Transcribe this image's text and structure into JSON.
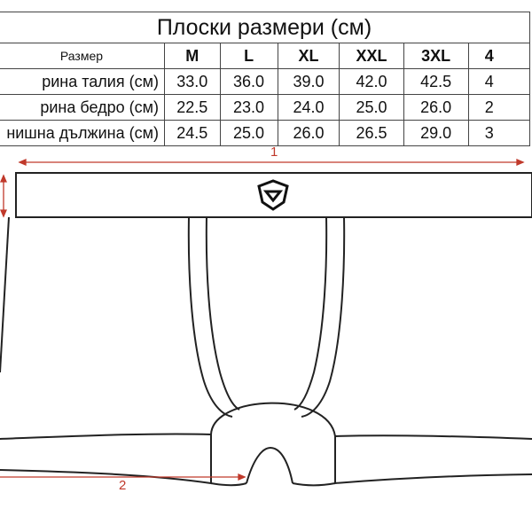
{
  "title": "Плоски размери (см)",
  "header": {
    "label": "Размер",
    "sizes": [
      "M",
      "L",
      "XL",
      "XXL",
      "3XL",
      "4"
    ]
  },
  "rows": [
    {
      "label": "рина талия (см)",
      "values": [
        "33.0",
        "36.0",
        "39.0",
        "42.0",
        "42.5",
        "4"
      ]
    },
    {
      "label": "рина бедро (см)",
      "values": [
        "22.5",
        "23.0",
        "24.0",
        "25.0",
        "26.0",
        "2"
      ]
    },
    {
      "label": "нишна дължина (см)",
      "values": [
        "24.5",
        "25.0",
        "26.0",
        "26.5",
        "29.0",
        "3"
      ]
    }
  ],
  "diagram": {
    "marker_1": "1",
    "marker_2": "2",
    "arrow_color": "#c0392b"
  }
}
